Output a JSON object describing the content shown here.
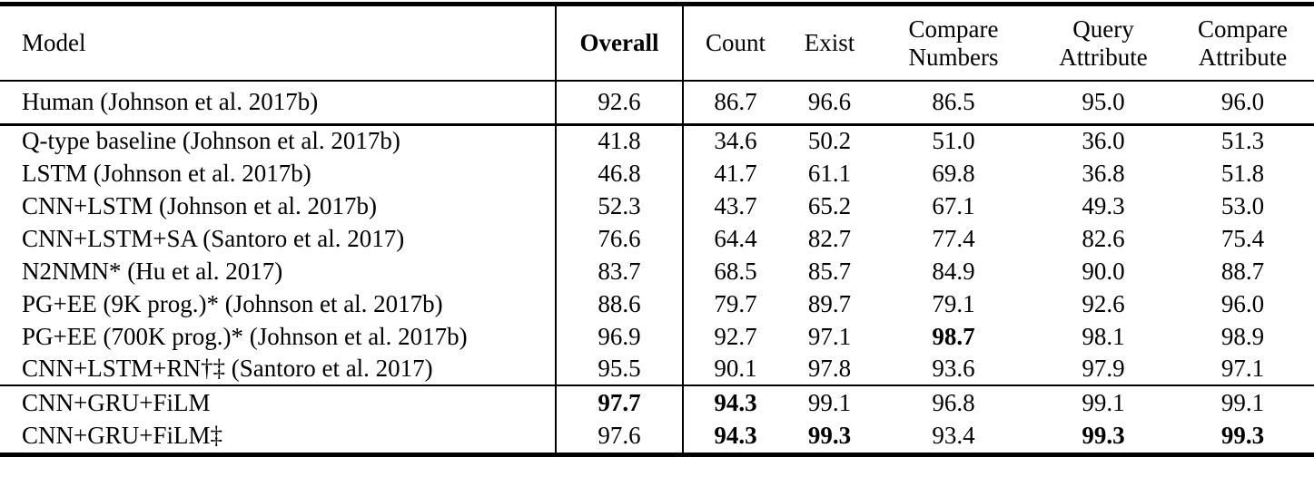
{
  "table": {
    "columns": [
      {
        "label": "Model",
        "bold": false
      },
      {
        "label": "Overall",
        "bold": true
      },
      {
        "label": "Count",
        "bold": false
      },
      {
        "label": "Exist",
        "bold": false
      },
      {
        "label": "Compare\nNumbers",
        "bold": false
      },
      {
        "label": "Query\nAttribute",
        "bold": false
      },
      {
        "label": "Compare\nAttribute",
        "bold": false
      }
    ],
    "groups": [
      {
        "name": "human",
        "rows": [
          {
            "model": "Human (Johnson et al. 2017b)",
            "values": [
              "92.6",
              "86.7",
              "96.6",
              "86.5",
              "95.0",
              "96.0"
            ],
            "bold": [
              false,
              false,
              false,
              false,
              false,
              false
            ]
          }
        ]
      },
      {
        "name": "baselines",
        "rows": [
          {
            "model": "Q-type baseline (Johnson et al. 2017b)",
            "values": [
              "41.8",
              "34.6",
              "50.2",
              "51.0",
              "36.0",
              "51.3"
            ],
            "bold": [
              false,
              false,
              false,
              false,
              false,
              false
            ]
          },
          {
            "model": "LSTM (Johnson et al. 2017b)",
            "values": [
              "46.8",
              "41.7",
              "61.1",
              "69.8",
              "36.8",
              "51.8"
            ],
            "bold": [
              false,
              false,
              false,
              false,
              false,
              false
            ]
          },
          {
            "model": "CNN+LSTM (Johnson et al. 2017b)",
            "values": [
              "52.3",
              "43.7",
              "65.2",
              "67.1",
              "49.3",
              "53.0"
            ],
            "bold": [
              false,
              false,
              false,
              false,
              false,
              false
            ]
          },
          {
            "model": "CNN+LSTM+SA (Santoro et al. 2017)",
            "values": [
              "76.6",
              "64.4",
              "82.7",
              "77.4",
              "82.6",
              "75.4"
            ],
            "bold": [
              false,
              false,
              false,
              false,
              false,
              false
            ]
          },
          {
            "model": "N2NMN* (Hu et al. 2017)",
            "values": [
              "83.7",
              "68.5",
              "85.7",
              "84.9",
              "90.0",
              "88.7"
            ],
            "bold": [
              false,
              false,
              false,
              false,
              false,
              false
            ]
          },
          {
            "model": "PG+EE (9K prog.)* (Johnson et al. 2017b)",
            "values": [
              "88.6",
              "79.7",
              "89.7",
              "79.1",
              "92.6",
              "96.0"
            ],
            "bold": [
              false,
              false,
              false,
              false,
              false,
              false
            ]
          },
          {
            "model": "PG+EE (700K prog.)* (Johnson et al. 2017b)",
            "values": [
              "96.9",
              "92.7",
              "97.1",
              "98.7",
              "98.1",
              "98.9"
            ],
            "bold": [
              false,
              false,
              false,
              true,
              false,
              false
            ]
          },
          {
            "model": "CNN+LSTM+RN†‡ (Santoro et al. 2017)",
            "values": [
              "95.5",
              "90.1",
              "97.8",
              "93.6",
              "97.9",
              "97.1"
            ],
            "bold": [
              false,
              false,
              false,
              false,
              false,
              false
            ]
          }
        ]
      },
      {
        "name": "film",
        "rows": [
          {
            "model": "CNN+GRU+FiLM",
            "values": [
              "97.7",
              "94.3",
              "99.1",
              "96.8",
              "99.1",
              "99.1"
            ],
            "bold": [
              true,
              true,
              false,
              false,
              false,
              false
            ]
          },
          {
            "model": "CNN+GRU+FiLM‡",
            "values": [
              "97.6",
              "94.3",
              "99.3",
              "93.4",
              "99.3",
              "99.3"
            ],
            "bold": [
              false,
              true,
              true,
              false,
              true,
              true
            ]
          }
        ]
      }
    ]
  }
}
